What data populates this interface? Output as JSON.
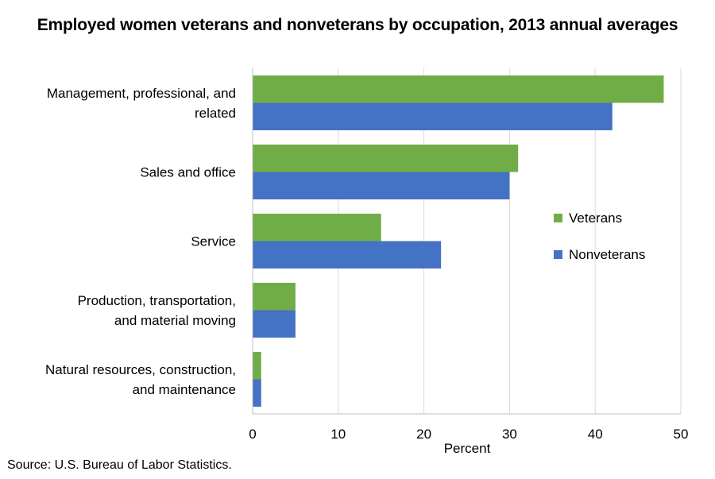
{
  "chart_data": {
    "type": "bar",
    "orientation": "horizontal",
    "title": "Employed women veterans and nonveterans by occupation, 2013 annual averages",
    "xlabel": "Percent",
    "ylabel": "",
    "xlim": [
      0,
      50
    ],
    "xticks": [
      0,
      10,
      20,
      30,
      40,
      50
    ],
    "grid": "vertical",
    "legend_placement": "right",
    "categories": [
      [
        "Management, professional, and",
        "related"
      ],
      [
        "Sales and office"
      ],
      [
        "Service"
      ],
      [
        "Production, transportation,",
        "and material moving"
      ],
      [
        "Natural resources, construction,",
        "and maintenance"
      ]
    ],
    "series": [
      {
        "name": "Veterans",
        "color": "#70ad47",
        "values": [
          48,
          31,
          15,
          5,
          1
        ]
      },
      {
        "name": "Nonveterans",
        "color": "#4472c4",
        "values": [
          42,
          30,
          22,
          5,
          1
        ]
      }
    ]
  },
  "source": "Source: U.S. Bureau of Labor Statistics."
}
